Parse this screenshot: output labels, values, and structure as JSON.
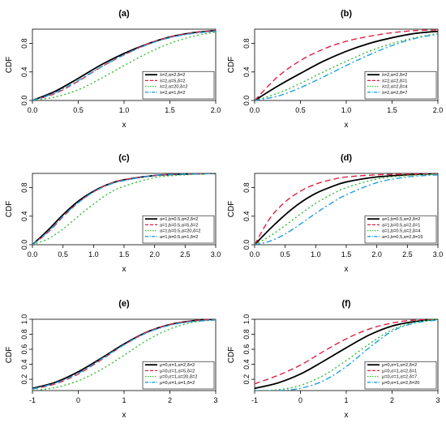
{
  "chart_data": [
    {
      "type": "line",
      "title": "(a)",
      "xlabel": "x",
      "ylabel": "CDF",
      "xlim": [
        0,
        2
      ],
      "ylim": [
        0,
        1
      ],
      "x_ticks": [
        "0.0",
        "0.5",
        "1.0",
        "1.5",
        "2.0"
      ],
      "y_ticks": [
        "0.0",
        "0.4",
        "0.8"
      ],
      "legend_position": "bottom-right",
      "x": [
        0,
        0.25,
        0.5,
        0.75,
        1,
        1.25,
        1.5,
        1.75,
        2
      ],
      "series": [
        {
          "name": "λ=2,α=2,δ=2",
          "color": "#000000",
          "dash": "solid",
          "values": [
            0.0,
            0.13,
            0.31,
            0.5,
            0.66,
            0.79,
            0.89,
            0.95,
            0.98
          ]
        },
        {
          "name": "λ=2,α=5,δ=2",
          "color": "#dd2244",
          "dash": "dashed",
          "values": [
            0.0,
            0.1,
            0.27,
            0.47,
            0.64,
            0.79,
            0.89,
            0.95,
            0.98
          ]
        },
        {
          "name": "λ=2,α=20,δ=2",
          "color": "#33bb33",
          "dash": "dotted",
          "values": [
            0.0,
            0.05,
            0.15,
            0.31,
            0.49,
            0.66,
            0.8,
            0.9,
            0.96
          ]
        },
        {
          "name": "λ=2,α=1,δ=2",
          "color": "#1f9fdf",
          "dash": "dotdash",
          "values": [
            0.0,
            0.11,
            0.28,
            0.47,
            0.64,
            0.78,
            0.88,
            0.94,
            0.97
          ]
        }
      ]
    },
    {
      "type": "line",
      "title": "(b)",
      "xlabel": "x",
      "ylabel": "CDF",
      "xlim": [
        0,
        2
      ],
      "ylim": [
        0,
        1
      ],
      "x_ticks": [
        "0.0",
        "0.5",
        "1.0",
        "1.5",
        "2.0"
      ],
      "y_ticks": [
        "0.0",
        "0.4",
        "0.8"
      ],
      "legend_position": "bottom-right",
      "x": [
        0,
        0.25,
        0.5,
        0.75,
        1,
        1.25,
        1.5,
        1.75,
        2
      ],
      "series": [
        {
          "name": "λ=2,α=2,δ=2",
          "color": "#000000",
          "dash": "solid",
          "values": [
            0.0,
            0.2,
            0.38,
            0.55,
            0.69,
            0.8,
            0.88,
            0.94,
            0.97
          ]
        },
        {
          "name": "λ=2,α=2,δ=1",
          "color": "#dd2244",
          "dash": "dashed",
          "values": [
            0.0,
            0.33,
            0.56,
            0.72,
            0.83,
            0.9,
            0.95,
            0.98,
            0.99
          ]
        },
        {
          "name": "λ=2,α=2,δ=4",
          "color": "#33bb33",
          "dash": "dotted",
          "values": [
            0.0,
            0.1,
            0.24,
            0.4,
            0.55,
            0.69,
            0.8,
            0.88,
            0.94
          ]
        },
        {
          "name": "λ=2,α=2,δ=7",
          "color": "#1f9fdf",
          "dash": "dotdash",
          "values": [
            0.0,
            0.06,
            0.18,
            0.33,
            0.49,
            0.64,
            0.77,
            0.87,
            0.93
          ]
        }
      ]
    },
    {
      "type": "line",
      "title": "(c)",
      "xlabel": "x",
      "ylabel": "CDF",
      "xlim": [
        0,
        3
      ],
      "ylim": [
        0,
        1
      ],
      "x_ticks": [
        "0.0",
        "0.5",
        "1.0",
        "1.5",
        "2.0",
        "2.5",
        "3.0"
      ],
      "y_ticks": [
        "0.0",
        "0.4",
        "0.8"
      ],
      "legend_position": "bottom-right",
      "x": [
        0,
        0.25,
        0.5,
        0.75,
        1,
        1.25,
        1.5,
        2,
        2.5,
        3
      ],
      "series": [
        {
          "name": "a=1,b=0.5,α=2,δ=2",
          "color": "#000000",
          "dash": "solid",
          "values": [
            0.0,
            0.2,
            0.42,
            0.61,
            0.75,
            0.85,
            0.91,
            0.97,
            0.99,
            1.0
          ]
        },
        {
          "name": "a=1,b=0.5,α=5,δ=2",
          "color": "#dd2244",
          "dash": "dashed",
          "values": [
            0.0,
            0.17,
            0.39,
            0.59,
            0.74,
            0.85,
            0.91,
            0.97,
            0.99,
            1.0
          ]
        },
        {
          "name": "a=1,b=0.5,α=20,δ=2",
          "color": "#33bb33",
          "dash": "dotted",
          "values": [
            0.0,
            0.08,
            0.22,
            0.4,
            0.57,
            0.72,
            0.82,
            0.94,
            0.98,
            1.0
          ]
        },
        {
          "name": "a=1,b=0.5,α=1,δ=2",
          "color": "#1f9fdf",
          "dash": "dotdash",
          "values": [
            0.0,
            0.18,
            0.4,
            0.59,
            0.74,
            0.84,
            0.9,
            0.97,
            0.99,
            1.0
          ]
        }
      ]
    },
    {
      "type": "line",
      "title": "(d)",
      "xlabel": "x",
      "ylabel": "CDF",
      "xlim": [
        0,
        3
      ],
      "ylim": [
        0,
        1
      ],
      "x_ticks": [
        "0.0",
        "0.5",
        "1.0",
        "1.5",
        "2.0",
        "2.5",
        "3.0"
      ],
      "y_ticks": [
        "0.0",
        "0.4",
        "0.8"
      ],
      "legend_position": "bottom-right",
      "x": [
        0,
        0.25,
        0.5,
        0.75,
        1,
        1.25,
        1.5,
        2,
        2.5,
        3
      ],
      "series": [
        {
          "name": "a=1,b=0.5,α=2,δ=2",
          "color": "#000000",
          "dash": "solid",
          "values": [
            0.0,
            0.22,
            0.42,
            0.59,
            0.72,
            0.81,
            0.88,
            0.95,
            0.98,
            1.0
          ]
        },
        {
          "name": "a=1,b=0.5,α=2,δ=1",
          "color": "#dd2244",
          "dash": "dashed",
          "values": [
            0.0,
            0.37,
            0.6,
            0.75,
            0.85,
            0.91,
            0.95,
            0.98,
            0.99,
            1.0
          ]
        },
        {
          "name": "a=1,b=0.5,α=2,δ=4",
          "color": "#33bb33",
          "dash": "dotted",
          "values": [
            0.0,
            0.12,
            0.27,
            0.43,
            0.58,
            0.7,
            0.8,
            0.92,
            0.97,
            0.99
          ]
        },
        {
          "name": "a=1,b=0.5,α=2,δ=15",
          "color": "#1f9fdf",
          "dash": "dotdash",
          "values": [
            0.0,
            0.05,
            0.15,
            0.29,
            0.44,
            0.58,
            0.7,
            0.87,
            0.95,
            0.98
          ]
        }
      ]
    },
    {
      "type": "line",
      "title": "(e)",
      "xlabel": "x",
      "ylabel": "CDF",
      "xlim": [
        -1,
        3
      ],
      "ylim": [
        0.05,
        1
      ],
      "x_ticks": [
        "-1",
        "0",
        "1",
        "2",
        "3"
      ],
      "y_ticks": [
        "0.2",
        "0.4",
        "0.6",
        "0.8",
        "1.0"
      ],
      "legend_position": "bottom-right",
      "x": [
        -1,
        -0.5,
        0,
        0.5,
        1,
        1.5,
        2,
        2.5,
        3
      ],
      "series": [
        {
          "name": "μ=0,σ=1,α=2,δ=2",
          "color": "#000000",
          "dash": "solid",
          "values": [
            0.08,
            0.16,
            0.3,
            0.48,
            0.67,
            0.83,
            0.93,
            0.98,
            1.0
          ]
        },
        {
          "name": "μ=0,σ=1,α=5,δ=2",
          "color": "#dd2244",
          "dash": "dashed",
          "values": [
            0.07,
            0.14,
            0.27,
            0.46,
            0.66,
            0.83,
            0.93,
            0.98,
            1.0
          ]
        },
        {
          "name": "μ=0,σ=1,α=20,δ=2",
          "color": "#33bb33",
          "dash": "dotted",
          "values": [
            0.05,
            0.09,
            0.18,
            0.33,
            0.52,
            0.72,
            0.87,
            0.96,
            0.99
          ]
        },
        {
          "name": "μ=0,σ=1,α=1,δ=2",
          "color": "#1f9fdf",
          "dash": "dotdash",
          "values": [
            0.07,
            0.15,
            0.28,
            0.47,
            0.66,
            0.82,
            0.92,
            0.97,
            0.99
          ]
        }
      ]
    },
    {
      "type": "line",
      "title": "(f)",
      "xlabel": "x",
      "ylabel": "CDF",
      "xlim": [
        -1,
        3
      ],
      "ylim": [
        0.05,
        1
      ],
      "x_ticks": [
        "-1",
        "0",
        "1",
        "2",
        "3"
      ],
      "y_ticks": [
        "0.2",
        "0.4",
        "0.6",
        "0.8",
        "1.0"
      ],
      "legend_position": "bottom-right",
      "x": [
        -1,
        -0.5,
        0,
        0.5,
        1,
        1.5,
        2,
        2.5,
        3
      ],
      "series": [
        {
          "name": "μ=0,σ=1,α=2,δ=2",
          "color": "#000000",
          "dash": "solid",
          "values": [
            0.08,
            0.15,
            0.27,
            0.44,
            0.62,
            0.79,
            0.91,
            0.97,
            1.0
          ]
        },
        {
          "name": "μ=0,σ=1,α=2,δ=1",
          "color": "#dd2244",
          "dash": "dashed",
          "values": [
            0.14,
            0.25,
            0.39,
            0.57,
            0.74,
            0.87,
            0.95,
            0.99,
            1.0
          ]
        },
        {
          "name": "μ=0,σ=1,α=2,δ=7",
          "color": "#33bb33",
          "dash": "dotted",
          "values": [
            0.05,
            0.06,
            0.12,
            0.25,
            0.45,
            0.67,
            0.86,
            0.96,
            1.0
          ]
        },
        {
          "name": "μ=0,σ=1,α=2,δ=20",
          "color": "#1f9fdf",
          "dash": "dotdash",
          "values": [
            0.05,
            0.05,
            0.08,
            0.18,
            0.37,
            0.62,
            0.84,
            0.95,
            0.99
          ]
        }
      ]
    }
  ]
}
